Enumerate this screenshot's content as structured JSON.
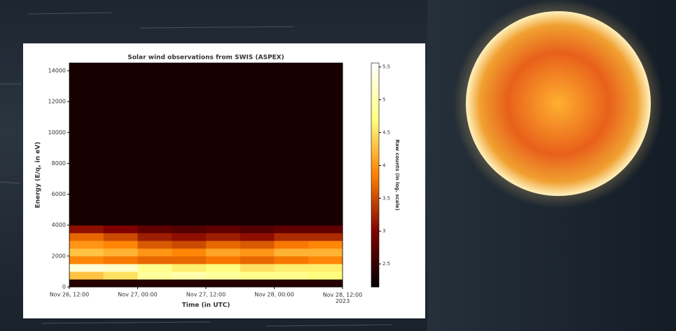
{
  "chart_data": {
    "type": "heatmap",
    "title": "Solar wind observations from SWIS (ASPEX)",
    "x_label": "Time (in UTC)",
    "y_label": "Energy (E/q, in eV)",
    "colorbar_label": "Raw counts (in log. scale)",
    "colormap": "afmhot",
    "x_bins": [
      "2023-11-26T12:00",
      "2023-11-26T18:00",
      "2023-11-27T00:00",
      "2023-11-27T06:00",
      "2023-11-27T12:00",
      "2023-11-27T18:00",
      "2023-11-28T00:00",
      "2023-11-28T06:00",
      "2023-11-28T12:00"
    ],
    "y_bins": [
      0,
      500,
      1000,
      1500,
      2000,
      2500,
      3000,
      3500,
      4000,
      14500
    ],
    "z": [
      [
        2.4,
        2.4,
        2.4,
        2.4,
        2.4,
        2.4,
        2.4,
        2.4
      ],
      [
        4.3,
        4.5,
        4.9,
        5.0,
        4.9,
        4.8,
        4.8,
        4.7
      ],
      [
        5.3,
        5.2,
        4.8,
        4.6,
        4.7,
        4.5,
        4.6,
        4.6
      ],
      [
        3.9,
        3.8,
        3.7,
        3.7,
        3.8,
        3.7,
        3.8,
        3.9
      ],
      [
        4.3,
        4.2,
        4.0,
        3.9,
        4.1,
        4.0,
        4.2,
        4.2
      ],
      [
        4.0,
        3.9,
        3.6,
        3.5,
        3.7,
        3.6,
        3.8,
        3.9
      ],
      [
        3.7,
        3.5,
        3.2,
        3.1,
        3.2,
        3.1,
        3.3,
        3.3
      ],
      [
        3.1,
        3.0,
        2.8,
        2.7,
        2.8,
        2.7,
        2.8,
        2.8
      ],
      [
        2.3,
        2.3,
        2.3,
        2.3,
        2.3,
        2.3,
        2.3,
        2.3
      ]
    ],
    "xlim": [
      "2023-11-26T12:00",
      "2023-11-28T12:00"
    ],
    "xticks": [
      {
        "value": "2023-11-26T12:00",
        "label": "Nov 26, 12:00"
      },
      {
        "value": "2023-11-27T00:00",
        "label": "Nov 27, 00:00"
      },
      {
        "value": "2023-11-27T12:00",
        "label": "Nov 27, 12:00"
      },
      {
        "value": "2023-11-28T00:00",
        "label": "Nov 28, 00:00"
      },
      {
        "value": "2023-11-28T12:00",
        "label": "Nov 28, 12:00\n2023"
      }
    ],
    "ylim": [
      0,
      14500
    ],
    "yticks": [
      0,
      2000,
      4000,
      6000,
      8000,
      10000,
      12000,
      14000
    ],
    "clim": [
      2.15,
      5.56
    ],
    "cticks": [
      2.5,
      3,
      3.5,
      4,
      4.5,
      5,
      5.5
    ]
  }
}
